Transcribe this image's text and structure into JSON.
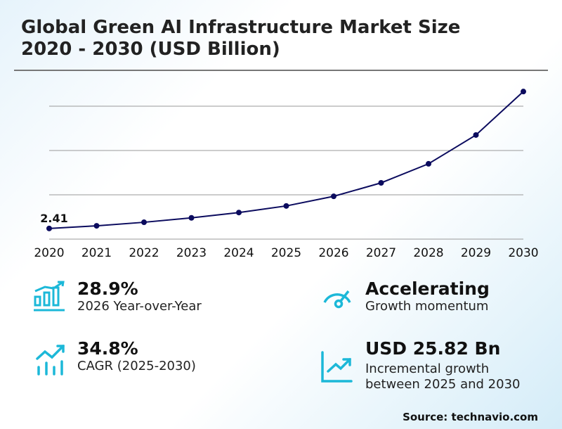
{
  "title_line1": "Global Green AI Infrastructure Market Size",
  "title_line2": "2020 - 2030 (USD Billion)",
  "chart_data": {
    "type": "line",
    "categories": [
      "2020",
      "2021",
      "2022",
      "2023",
      "2024",
      "2025",
      "2026",
      "2027",
      "2028",
      "2029",
      "2030"
    ],
    "values": [
      2.41,
      3.0,
      3.8,
      4.8,
      6.0,
      7.49,
      9.66,
      12.7,
      17.0,
      23.5,
      33.31
    ],
    "data_labels": [
      {
        "index": 0,
        "text": "2.41"
      }
    ],
    "ylim": [
      0,
      34
    ],
    "gridlines": [
      0,
      10,
      20,
      30
    ],
    "grid": true,
    "line_color": "#0b0b5e",
    "xlabel": "",
    "ylabel": ""
  },
  "stats": [
    {
      "value": "28.9%",
      "label": "2026 Year-over-Year",
      "icon": "bar-chart-growth-icon"
    },
    {
      "value": "Accelerating",
      "label": "Growth momentum",
      "icon": "speedometer-icon"
    },
    {
      "value": "34.8%",
      "label": "CAGR (2025-2030)",
      "icon": "trending-up-bars-icon"
    },
    {
      "value": "USD 25.82 Bn",
      "label_line1": "Incremental growth",
      "label_line2": "between 2025 and 2030",
      "icon": "line-chart-up-icon"
    }
  ],
  "accent_color": "#1cb8d8",
  "source": "Source: technavio.com"
}
